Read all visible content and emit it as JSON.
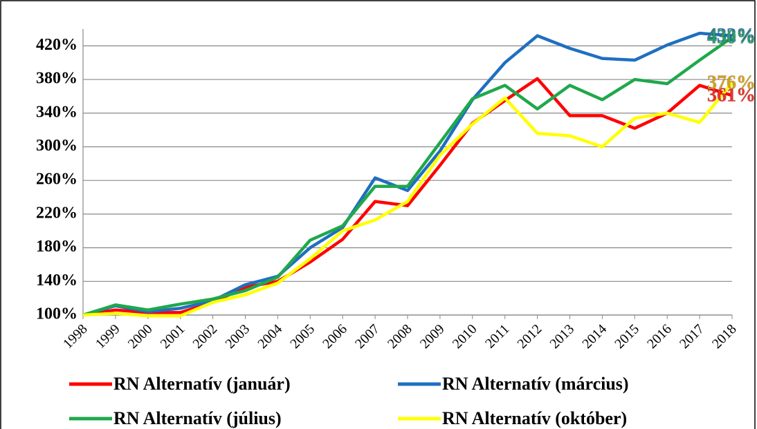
{
  "chart_data": {
    "type": "line",
    "categories": [
      "1998",
      "1999",
      "2000",
      "2001",
      "2002",
      "2003",
      "2004",
      "2005",
      "2006",
      "2007",
      "2008",
      "2009",
      "2010",
      "2011",
      "2012",
      "2013",
      "2014",
      "2015",
      "2016",
      "2017",
      "2018"
    ],
    "series": [
      {
        "name": "RN Alternatív (január)",
        "color": "#ff0000",
        "values": [
          100,
          106,
          103,
          103,
          115,
          133,
          140,
          163,
          190,
          235,
          230,
          278,
          328,
          355,
          381,
          337,
          337,
          322,
          340,
          373,
          361
        ],
        "value_labels": [
          null,
          null,
          null,
          null,
          null,
          null,
          null,
          null,
          null,
          null,
          null,
          null,
          null,
          null,
          null,
          null,
          null,
          null,
          null,
          null,
          "361%"
        ],
        "label_color": "#e8322c"
      },
      {
        "name": "RN Alternatív (március)",
        "color": "#1f6fc0",
        "values": [
          100,
          111,
          104,
          108,
          117,
          136,
          146,
          180,
          204,
          263,
          248,
          295,
          356,
          400,
          432,
          417,
          405,
          403,
          421,
          435,
          432
        ],
        "value_labels": [
          null,
          null,
          null,
          null,
          null,
          null,
          null,
          null,
          null,
          null,
          null,
          null,
          null,
          null,
          null,
          null,
          null,
          null,
          null,
          null,
          "432%"
        ],
        "label_color": "#2e75b6"
      },
      {
        "name": "RN Alternatív (július)",
        "color": "#1fa84b",
        "values": [
          100,
          112,
          106,
          113,
          119,
          129,
          145,
          189,
          206,
          253,
          253,
          305,
          357,
          373,
          345,
          373,
          356,
          380,
          375,
          403,
          430
        ],
        "value_labels": [
          null,
          null,
          null,
          null,
          null,
          null,
          null,
          null,
          null,
          null,
          null,
          null,
          null,
          null,
          null,
          null,
          null,
          null,
          null,
          null,
          "430%"
        ],
        "label_color": "#2e9b6a"
      },
      {
        "name": "RN Alternatív (október)",
        "color": "#ffff00",
        "values": [
          100,
          102,
          99,
          99,
          115,
          124,
          138,
          167,
          200,
          213,
          235,
          290,
          327,
          358,
          316,
          313,
          300,
          334,
          340,
          329,
          376
        ],
        "value_labels": [
          null,
          null,
          null,
          null,
          null,
          null,
          null,
          null,
          null,
          null,
          null,
          null,
          null,
          null,
          null,
          null,
          null,
          null,
          null,
          null,
          "376%"
        ],
        "label_color": "#d4a020"
      }
    ],
    "ylim": [
      100,
      440
    ],
    "yticks": [
      {
        "value": 100,
        "label": "100%"
      },
      {
        "value": 140,
        "label": "140%"
      },
      {
        "value": 180,
        "label": "180%"
      },
      {
        "value": 220,
        "label": "220%"
      },
      {
        "value": 260,
        "label": "260%"
      },
      {
        "value": 300,
        "label": "300%"
      },
      {
        "value": 340,
        "label": "340%"
      },
      {
        "value": 380,
        "label": "380%"
      },
      {
        "value": 420,
        "label": "420%"
      }
    ],
    "grid": true
  }
}
